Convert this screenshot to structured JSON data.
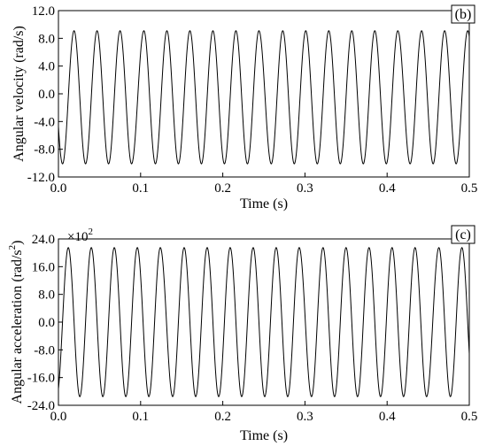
{
  "chart_data": [
    {
      "type": "line",
      "panel_label": "(b)",
      "xlabel": "Time (s)",
      "ylabel": "Angular velocity (rad/s)",
      "xlim": [
        0.0,
        0.5
      ],
      "ylim": [
        -12.0,
        12.0
      ],
      "x_ticks": [
        "0.0",
        "0.1",
        "0.2",
        "0.3",
        "0.4",
        "0.5"
      ],
      "y_ticks": [
        "-12.0",
        "-8.0",
        "-4.0",
        "0.0",
        "4.0",
        "8.0",
        "12.0"
      ],
      "series": [
        {
          "amplitude": 9.6,
          "offset": -0.5,
          "frequency_hz": 35.5,
          "x_start": 0.0,
          "x_end": 0.5,
          "peaks": [
            [
              0.019,
              9.1
            ],
            [
              0.047,
              9.1
            ],
            [
              0.075,
              9.1
            ],
            [
              0.104,
              9.1
            ],
            [
              0.132,
              9.1
            ],
            [
              0.16,
              9.1
            ],
            [
              0.188,
              9.1
            ],
            [
              0.216,
              9.1
            ],
            [
              0.244,
              9.1
            ],
            [
              0.273,
              9.1
            ],
            [
              0.301,
              9.1
            ],
            [
              0.329,
              9.1
            ],
            [
              0.357,
              9.1
            ],
            [
              0.385,
              9.1
            ],
            [
              0.413,
              9.1
            ],
            [
              0.442,
              9.1
            ],
            [
              0.47,
              9.1
            ]
          ],
          "troughs": [
            [
              0.005,
              -10.1
            ],
            [
              0.033,
              -10.1
            ],
            [
              0.061,
              -10.1
            ],
            [
              0.089,
              -10.1
            ],
            [
              0.118,
              -10.1
            ],
            [
              0.146,
              -10.1
            ],
            [
              0.174,
              -10.1
            ],
            [
              0.202,
              -10.1
            ],
            [
              0.23,
              -10.1
            ],
            [
              0.259,
              -10.1
            ],
            [
              0.287,
              -10.1
            ],
            [
              0.315,
              -10.1
            ],
            [
              0.343,
              -10.1
            ],
            [
              0.371,
              -10.1
            ],
            [
              0.399,
              -10.1
            ],
            [
              0.428,
              -10.1
            ],
            [
              0.456,
              -10.1
            ],
            [
              0.484,
              -10.1
            ]
          ]
        }
      ]
    },
    {
      "type": "line",
      "panel_label": "(c)",
      "xlabel": "Time (s)",
      "ylabel": "Angular acceleration (rad/s",
      "ylabel_sup": "2",
      "ylabel_end": ")",
      "multiplier_base": "×10",
      "multiplier_exp": "2",
      "xlim": [
        0.0,
        0.5
      ],
      "ylim": [
        -24.0,
        24.0
      ],
      "x_ticks": [
        "0.0",
        "0.1",
        "0.2",
        "0.3",
        "0.4",
        "0.5"
      ],
      "y_ticks": [
        "-24.0",
        "-16.0",
        "-8.0",
        "0.0",
        "8.0",
        "16.0",
        "24.0"
      ],
      "series": [
        {
          "amplitude": 21.5,
          "offset": 0.0,
          "frequency_hz": 35.5,
          "x_start": 0.0,
          "x_end": 0.5,
          "peaks": [
            [
              0.012,
              21.5
            ],
            [
              0.04,
              21.5
            ],
            [
              0.068,
              21.5
            ],
            [
              0.096,
              21.5
            ],
            [
              0.124,
              21.5
            ],
            [
              0.153,
              21.5
            ],
            [
              0.181,
              21.5
            ],
            [
              0.209,
              21.5
            ],
            [
              0.237,
              21.5
            ],
            [
              0.265,
              21.5
            ],
            [
              0.293,
              21.5
            ],
            [
              0.322,
              21.5
            ],
            [
              0.35,
              21.5
            ],
            [
              0.378,
              21.5
            ],
            [
              0.406,
              21.5
            ],
            [
              0.434,
              21.5
            ],
            [
              0.463,
              21.5
            ],
            [
              0.491,
              21.5
            ]
          ],
          "troughs": [
            [
              0.026,
              -21.5
            ],
            [
              0.054,
              -21.5
            ],
            [
              0.082,
              -21.5
            ],
            [
              0.11,
              -21.5
            ],
            [
              0.139,
              -21.5
            ],
            [
              0.167,
              -21.5
            ],
            [
              0.195,
              -21.5
            ],
            [
              0.223,
              -21.5
            ],
            [
              0.251,
              -21.5
            ],
            [
              0.279,
              -21.5
            ],
            [
              0.308,
              -21.5
            ],
            [
              0.336,
              -21.5
            ],
            [
              0.364,
              -21.5
            ],
            [
              0.392,
              -21.5
            ],
            [
              0.42,
              -21.5
            ],
            [
              0.448,
              -21.5
            ],
            [
              0.477,
              -21.5
            ]
          ]
        }
      ]
    }
  ]
}
